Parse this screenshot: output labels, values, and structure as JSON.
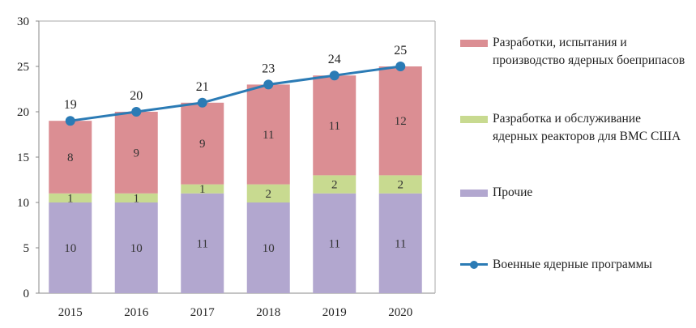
{
  "chart_data": {
    "type": "bar",
    "stacked": true,
    "categories": [
      "2015",
      "2016",
      "2017",
      "2018",
      "2019",
      "2020"
    ],
    "series": [
      {
        "name": "Прочие",
        "values": [
          10,
          10,
          11,
          10,
          11,
          11
        ],
        "color": "#b2a7cf"
      },
      {
        "name": "Разработка и обслуживание ядерных реакторов для ВМС США",
        "values": [
          1,
          1,
          1,
          2,
          2,
          2
        ],
        "color": "#c8da90"
      },
      {
        "name": "Разработки, испытания и производство ядерных боеприпасов",
        "values": [
          8,
          9,
          9,
          11,
          11,
          12
        ],
        "color": "#db8e93"
      }
    ],
    "line_series": {
      "name": "Военные ядерные программы",
      "values": [
        19,
        20,
        21,
        23,
        24,
        25
      ],
      "color": "#2b7bb5"
    },
    "ylim": [
      0,
      30
    ],
    "yticks": [
      "0",
      "5",
      "10",
      "15",
      "20",
      "25",
      "30"
    ],
    "grid": false,
    "legend_position": "right"
  }
}
